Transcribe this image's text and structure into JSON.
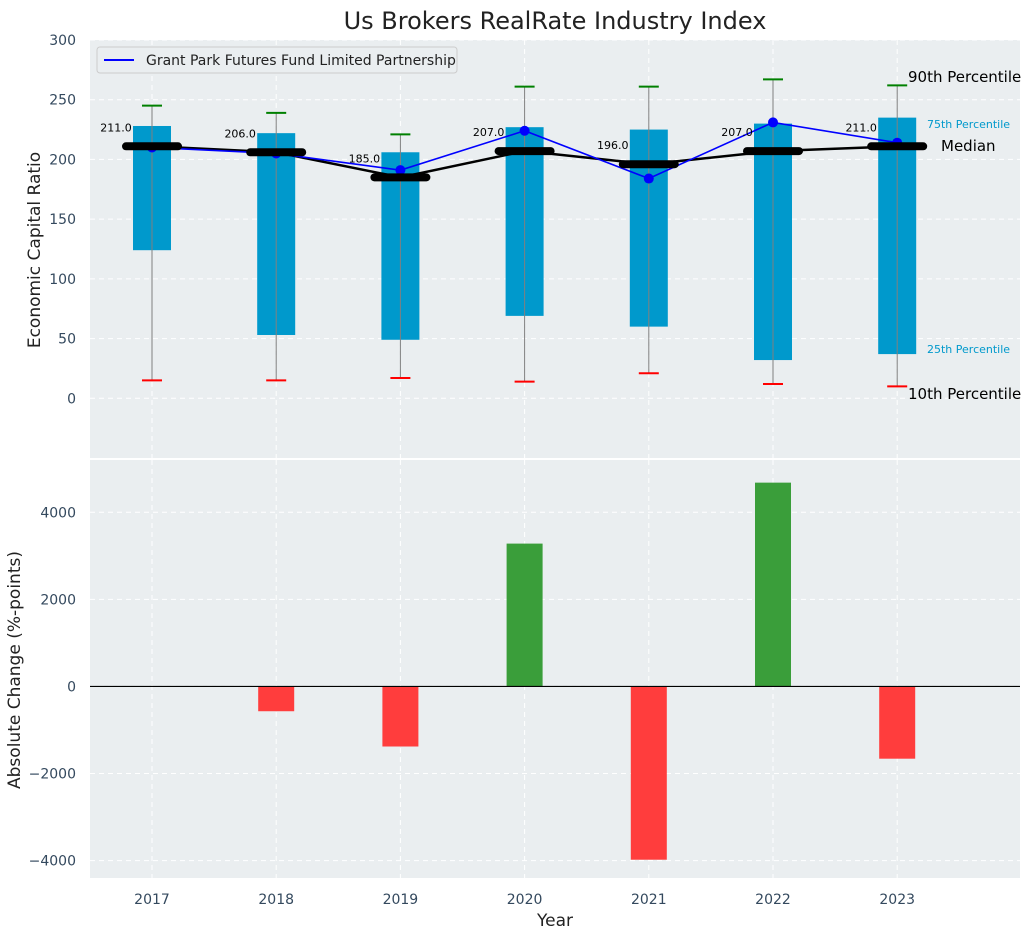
{
  "chart_data": [
    {
      "type": "box",
      "title": "Us Brokers RealRate Industry Index",
      "ylabel": "Economic Capital Ratio",
      "ylim": [
        -50,
        300
      ],
      "yticks": [
        0,
        50,
        100,
        150,
        200,
        250,
        300
      ],
      "categories": [
        "2017",
        "2018",
        "2019",
        "2020",
        "2021",
        "2022",
        "2023"
      ],
      "p10": [
        15,
        15,
        17,
        14,
        21,
        12,
        10
      ],
      "p25": [
        124,
        53,
        49,
        69,
        60,
        32,
        37
      ],
      "median": [
        211,
        206,
        185,
        207,
        196,
        207,
        211
      ],
      "median_labels": [
        "211.0",
        "206.0",
        "185.0",
        "207.0",
        "196.0",
        "207.0",
        "211.0"
      ],
      "p75": [
        228,
        222,
        206,
        227,
        225,
        230,
        235
      ],
      "p90": [
        245,
        239,
        221,
        261,
        261,
        267,
        262
      ],
      "series": [
        {
          "name": "Grant Park Futures Fund Limited Partnership",
          "values": [
            210,
            205,
            191,
            224,
            184,
            231,
            214
          ]
        }
      ],
      "annotations": {
        "p90": "90th Percentile",
        "p75": "75th Percentile",
        "median": "Median",
        "p25": "25th Percentile",
        "p10": "10th Percentile"
      },
      "legend": "top-left",
      "grid": true
    },
    {
      "type": "bar",
      "ylabel": "Absolute Change (%-points)",
      "xlabel": "Year",
      "ylim": [
        -4400,
        5200
      ],
      "yticks": [
        -4000,
        -2000,
        0,
        2000,
        4000
      ],
      "ytick_labels": [
        "−4000",
        "−2000",
        "0",
        "2000",
        "4000"
      ],
      "categories": [
        "2017",
        "2018",
        "2019",
        "2020",
        "2021",
        "2022",
        "2023"
      ],
      "values": [
        null,
        -570,
        -1380,
        3280,
        -3980,
        4680,
        -1660
      ],
      "grid": true
    }
  ],
  "colors": {
    "background": "#eaeef0",
    "box": "#0099cc",
    "series": "#0000ff",
    "median": "#000000",
    "p90_cap": "#008000",
    "p10_cap": "#ff0000",
    "whisker": "#808080",
    "positive_bar": "#3a9e3a",
    "negative_bar": "#ff3d3d",
    "pct75_text": "#0099cc",
    "pct25_text": "#0099cc"
  }
}
